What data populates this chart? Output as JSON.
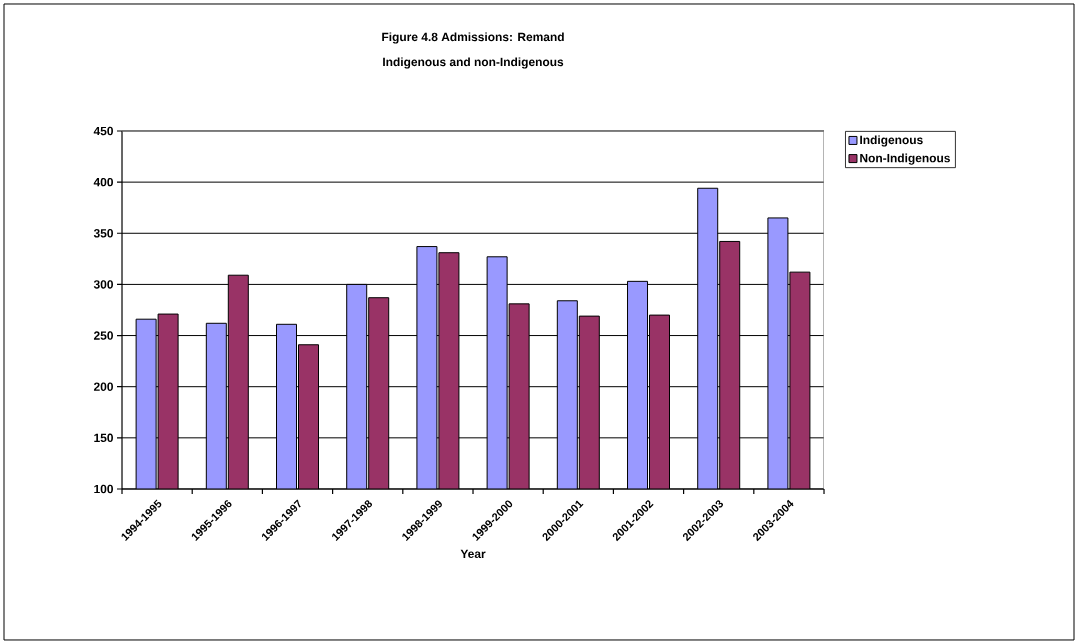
{
  "chart_data": {
    "type": "bar",
    "title": "Figure 4.8  Admissions: Remand",
    "subtitle": "Indigenous and non-Indigenous",
    "xlabel": "Year",
    "categories": [
      "1994-1995",
      "1995-1996",
      "1996-1997",
      "1997-1998",
      "1998-1999",
      "1999-2000",
      "2000-2001",
      "2001-2002",
      "2002-2003",
      "2003-2004"
    ],
    "series": [
      {
        "name": "Indigenous",
        "color": "#9999ff",
        "values": [
          266,
          262,
          261,
          300,
          337,
          327,
          284,
          303,
          394,
          365
        ]
      },
      {
        "name": "Non-Indigenous",
        "color": "#993366",
        "values": [
          271,
          309,
          241,
          287,
          331,
          281,
          269,
          270,
          342,
          312
        ]
      }
    ],
    "ylim": [
      100,
      450
    ],
    "yticks": [
      100,
      150,
      200,
      250,
      300,
      350,
      400,
      450
    ],
    "grid": "y",
    "legend": "top right"
  }
}
